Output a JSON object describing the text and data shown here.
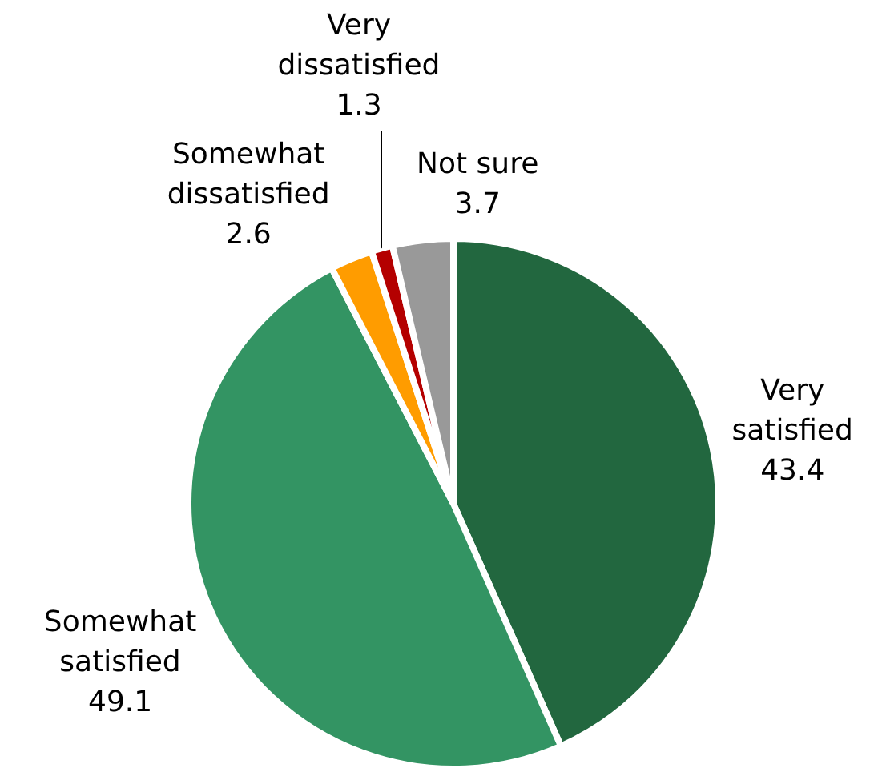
{
  "chart_data": {
    "type": "pie",
    "categories": [
      "Very satisfied",
      "Somewhat satisfied",
      "Somewhat dissatisfied",
      "Very dissatisfied",
      "Not sure"
    ],
    "values": [
      43.4,
      49.1,
      2.6,
      1.3,
      3.7
    ],
    "colors": [
      "#22673f",
      "#339463",
      "#ff9c00",
      "#b40000",
      "#999999"
    ],
    "data_labels": true,
    "legend": false
  }
}
